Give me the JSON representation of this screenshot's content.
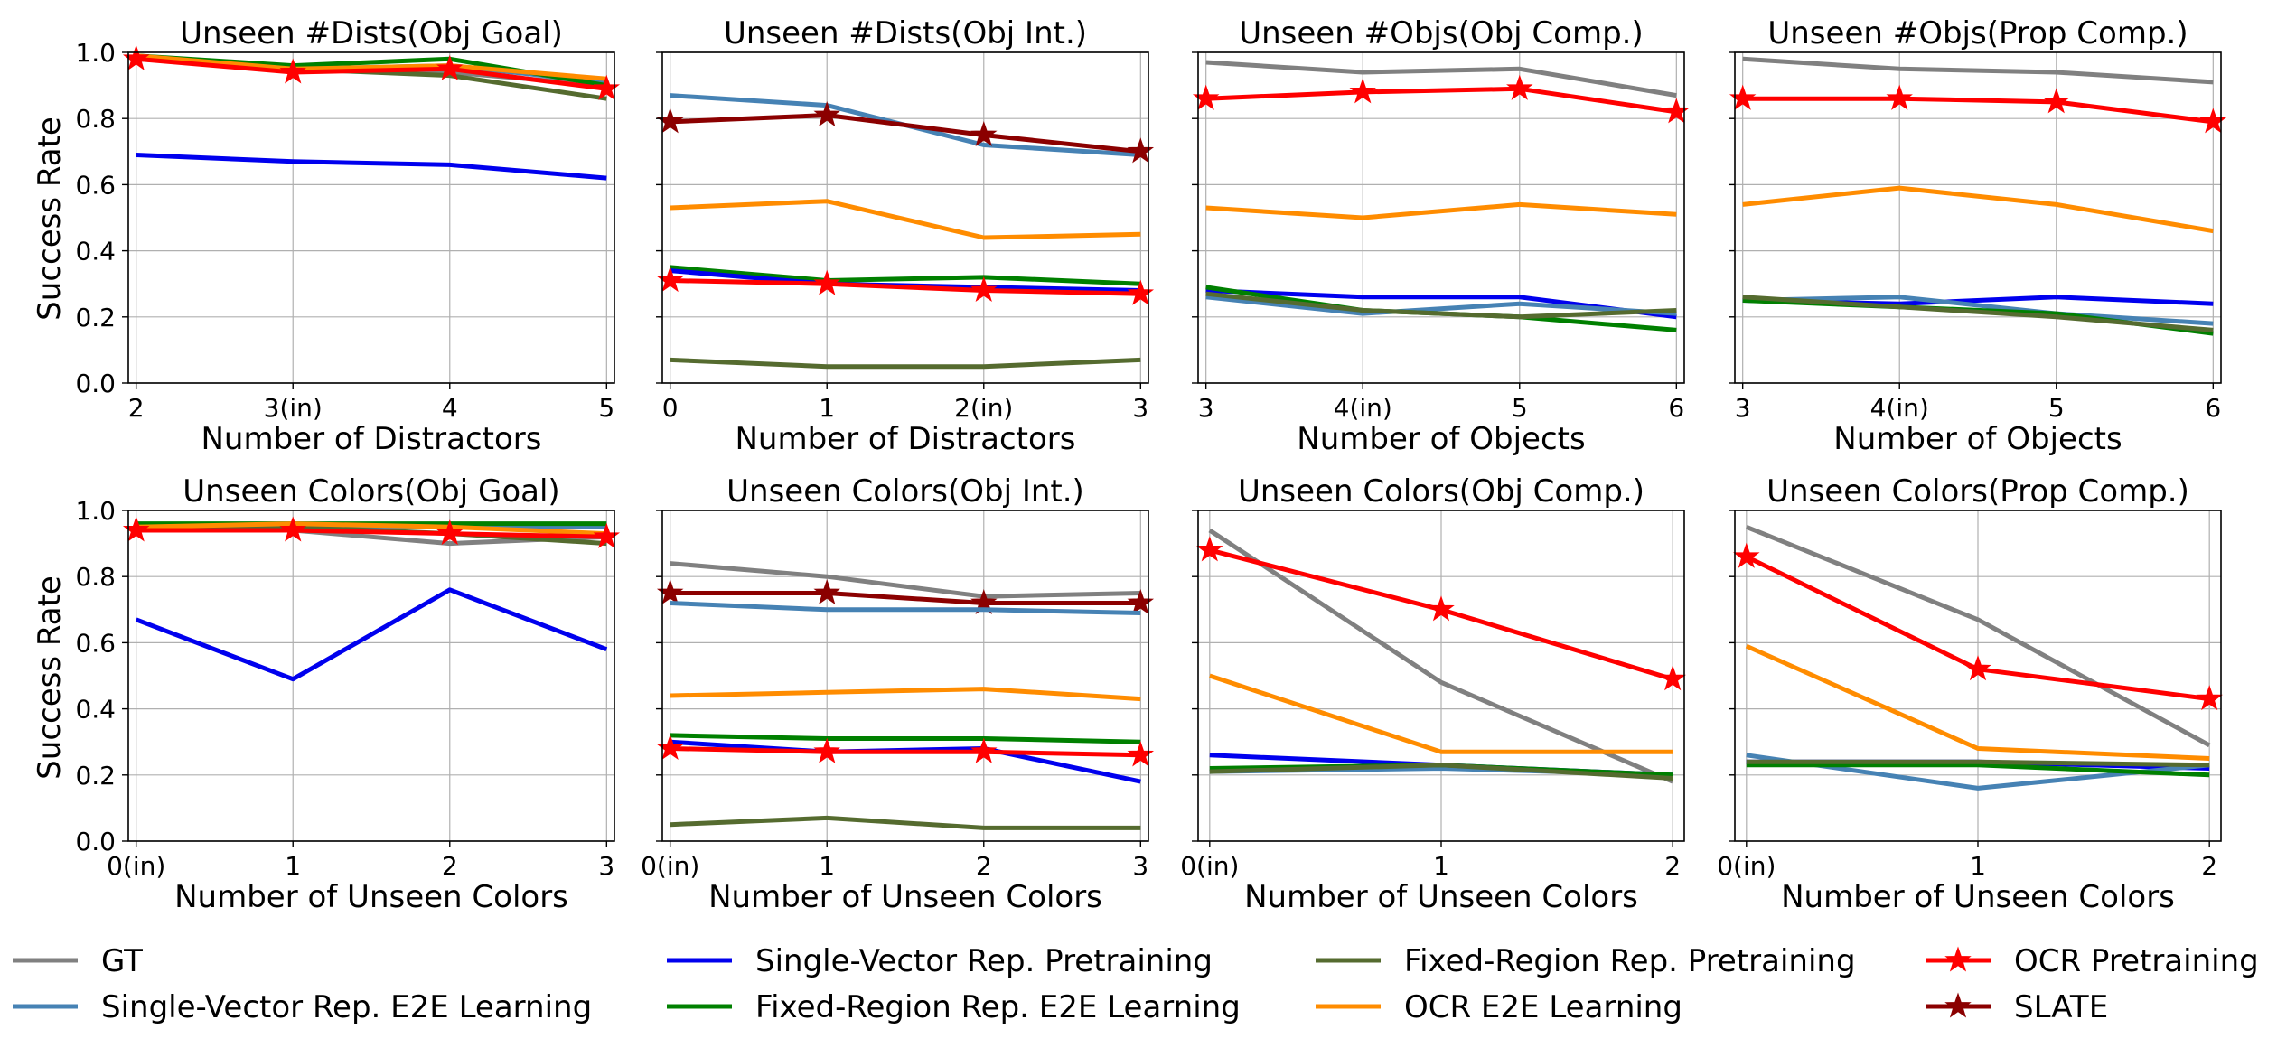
{
  "figure": {
    "ylabel": "Success Rate",
    "y_ticks": [
      "0.0",
      "0.2",
      "0.4",
      "0.6",
      "0.8",
      "1.0"
    ]
  },
  "styles": {
    "GT": {
      "color": "#808080",
      "marker": "none"
    },
    "Single-Vector Rep. E2E Learning": {
      "color": "#4682b4",
      "marker": "none"
    },
    "Single-Vector Rep. Pretraining": {
      "color": "#0000ee",
      "marker": "none"
    },
    "Fixed-Region Rep. E2E Learning": {
      "color": "#008000",
      "marker": "none"
    },
    "Fixed-Region Rep. Pretraining": {
      "color": "#556b2f",
      "marker": "none"
    },
    "OCR E2E Learning": {
      "color": "#ff8c00",
      "marker": "none"
    },
    "OCR Pretraining": {
      "color": "#ff0000",
      "marker": "star"
    },
    "SLATE": {
      "color": "#8b0000",
      "marker": "star"
    }
  },
  "legend": {
    "columns": [
      [
        "GT",
        "Single-Vector Rep. E2E Learning"
      ],
      [
        "Single-Vector Rep. Pretraining",
        "Fixed-Region Rep. E2E Learning"
      ],
      [
        "Fixed-Region Rep. Pretraining",
        "OCR E2E Learning"
      ],
      [
        "OCR Pretraining",
        "SLATE"
      ]
    ]
  },
  "chart_data": [
    {
      "type": "line",
      "title": "Unseen #Dists(Obj Goal)",
      "xlabel": "Number of Distractors",
      "categories": [
        "2",
        "3(in)",
        "4",
        "5"
      ],
      "ylim": [
        0,
        1
      ],
      "series": [
        {
          "name": "GT",
          "values": [
            0.99,
            0.95,
            0.94,
            0.9
          ]
        },
        {
          "name": "Single-Vector Rep. E2E Learning",
          "values": [
            0.98,
            0.95,
            0.96,
            0.91
          ]
        },
        {
          "name": "Single-Vector Rep. Pretraining",
          "values": [
            0.69,
            0.67,
            0.66,
            0.62
          ]
        },
        {
          "name": "Fixed-Region Rep. E2E Learning",
          "values": [
            0.99,
            0.96,
            0.98,
            0.9
          ]
        },
        {
          "name": "Fixed-Region Rep. Pretraining",
          "values": [
            0.98,
            0.95,
            0.93,
            0.86
          ]
        },
        {
          "name": "OCR E2E Learning",
          "values": [
            0.99,
            0.95,
            0.96,
            0.92
          ]
        },
        {
          "name": "OCR Pretraining",
          "values": [
            0.98,
            0.94,
            0.95,
            0.89
          ]
        }
      ]
    },
    {
      "type": "line",
      "title": "Unseen #Dists(Obj Int.)",
      "xlabel": "Number of Distractors",
      "categories": [
        "0",
        "1",
        "2(in)",
        "3"
      ],
      "ylim": [
        0,
        1
      ],
      "series": [
        {
          "name": "Single-Vector Rep. E2E Learning",
          "values": [
            0.87,
            0.84,
            0.72,
            0.69
          ]
        },
        {
          "name": "SLATE",
          "values": [
            0.79,
            0.81,
            0.75,
            0.7
          ]
        },
        {
          "name": "OCR E2E Learning",
          "values": [
            0.53,
            0.55,
            0.44,
            0.45
          ]
        },
        {
          "name": "Fixed-Region Rep. E2E Learning",
          "values": [
            0.35,
            0.31,
            0.32,
            0.3
          ]
        },
        {
          "name": "Single-Vector Rep. Pretraining",
          "values": [
            0.34,
            0.3,
            0.29,
            0.28
          ]
        },
        {
          "name": "OCR Pretraining",
          "values": [
            0.31,
            0.3,
            0.28,
            0.27
          ]
        },
        {
          "name": "Fixed-Region Rep. Pretraining",
          "values": [
            0.07,
            0.05,
            0.05,
            0.07
          ]
        }
      ]
    },
    {
      "type": "line",
      "title": "Unseen #Objs(Obj Comp.)",
      "xlabel": "Number of Objects",
      "categories": [
        "3",
        "4(in)",
        "5",
        "6"
      ],
      "ylim": [
        0,
        1
      ],
      "series": [
        {
          "name": "GT",
          "values": [
            0.97,
            0.94,
            0.95,
            0.87
          ]
        },
        {
          "name": "OCR Pretraining",
          "values": [
            0.86,
            0.88,
            0.89,
            0.82
          ]
        },
        {
          "name": "OCR E2E Learning",
          "values": [
            0.53,
            0.5,
            0.54,
            0.51
          ]
        },
        {
          "name": "Single-Vector Rep. Pretraining",
          "values": [
            0.28,
            0.26,
            0.26,
            0.2
          ]
        },
        {
          "name": "Single-Vector Rep. E2E Learning",
          "values": [
            0.26,
            0.21,
            0.24,
            0.21
          ]
        },
        {
          "name": "Fixed-Region Rep. E2E Learning",
          "values": [
            0.29,
            0.22,
            0.2,
            0.16
          ]
        },
        {
          "name": "Fixed-Region Rep. Pretraining",
          "values": [
            0.27,
            0.22,
            0.2,
            0.22
          ]
        }
      ]
    },
    {
      "type": "line",
      "title": "Unseen #Objs(Prop Comp.)",
      "xlabel": "Number of Objects",
      "categories": [
        "3",
        "4(in)",
        "5",
        "6"
      ],
      "ylim": [
        0,
        1
      ],
      "series": [
        {
          "name": "GT",
          "values": [
            0.98,
            0.95,
            0.94,
            0.91
          ]
        },
        {
          "name": "OCR Pretraining",
          "values": [
            0.86,
            0.86,
            0.85,
            0.79
          ]
        },
        {
          "name": "OCR E2E Learning",
          "values": [
            0.54,
            0.59,
            0.54,
            0.46
          ]
        },
        {
          "name": "Single-Vector Rep. Pretraining",
          "values": [
            0.25,
            0.24,
            0.26,
            0.24
          ]
        },
        {
          "name": "Single-Vector Rep. E2E Learning",
          "values": [
            0.25,
            0.26,
            0.21,
            0.18
          ]
        },
        {
          "name": "Fixed-Region Rep. E2E Learning",
          "values": [
            0.25,
            0.23,
            0.21,
            0.15
          ]
        },
        {
          "name": "Fixed-Region Rep. Pretraining",
          "values": [
            0.26,
            0.23,
            0.2,
            0.16
          ]
        }
      ]
    },
    {
      "type": "line",
      "title": "Unseen Colors(Obj Goal)",
      "xlabel": "Number of Unseen Colors",
      "categories": [
        "0(in)",
        "1",
        "2",
        "3"
      ],
      "ylim": [
        0,
        1
      ],
      "series": [
        {
          "name": "GT",
          "values": [
            0.95,
            0.94,
            0.9,
            0.92
          ]
        },
        {
          "name": "Single-Vector Rep. E2E Learning",
          "values": [
            0.95,
            0.95,
            0.95,
            0.95
          ]
        },
        {
          "name": "Single-Vector Rep. Pretraining",
          "values": [
            0.67,
            0.49,
            0.76,
            0.58
          ]
        },
        {
          "name": "Fixed-Region Rep. E2E Learning",
          "values": [
            0.96,
            0.96,
            0.96,
            0.96
          ]
        },
        {
          "name": "Fixed-Region Rep. Pretraining",
          "values": [
            0.95,
            0.95,
            0.93,
            0.9
          ]
        },
        {
          "name": "OCR E2E Learning",
          "values": [
            0.95,
            0.96,
            0.95,
            0.93
          ]
        },
        {
          "name": "OCR Pretraining",
          "values": [
            0.94,
            0.94,
            0.93,
            0.92
          ]
        }
      ]
    },
    {
      "type": "line",
      "title": "Unseen Colors(Obj Int.)",
      "xlabel": "Number of Unseen Colors",
      "categories": [
        "0(in)",
        "1",
        "2",
        "3"
      ],
      "ylim": [
        0,
        1
      ],
      "series": [
        {
          "name": "GT",
          "values": [
            0.84,
            0.8,
            0.74,
            0.75
          ]
        },
        {
          "name": "SLATE",
          "values": [
            0.75,
            0.75,
            0.72,
            0.72
          ]
        },
        {
          "name": "Single-Vector Rep. E2E Learning",
          "values": [
            0.72,
            0.7,
            0.7,
            0.69
          ]
        },
        {
          "name": "OCR E2E Learning",
          "values": [
            0.44,
            0.45,
            0.46,
            0.43
          ]
        },
        {
          "name": "Fixed-Region Rep. E2E Learning",
          "values": [
            0.32,
            0.31,
            0.31,
            0.3
          ]
        },
        {
          "name": "Single-Vector Rep. Pretraining",
          "values": [
            0.3,
            0.27,
            0.28,
            0.18
          ]
        },
        {
          "name": "OCR Pretraining",
          "values": [
            0.28,
            0.27,
            0.27,
            0.26
          ]
        },
        {
          "name": "Fixed-Region Rep. Pretraining",
          "values": [
            0.05,
            0.07,
            0.04,
            0.04
          ]
        }
      ]
    },
    {
      "type": "line",
      "title": "Unseen Colors(Obj Comp.)",
      "xlabel": "Number of Unseen Colors",
      "categories": [
        "0(in)",
        "1",
        "2"
      ],
      "ylim": [
        0,
        1
      ],
      "series": [
        {
          "name": "GT",
          "values": [
            0.94,
            0.48,
            0.18
          ]
        },
        {
          "name": "OCR Pretraining",
          "values": [
            0.88,
            0.7,
            0.49
          ]
        },
        {
          "name": "OCR E2E Learning",
          "values": [
            0.5,
            0.27,
            0.27
          ]
        },
        {
          "name": "Single-Vector Rep. Pretraining",
          "values": [
            0.26,
            0.23,
            0.2
          ]
        },
        {
          "name": "Single-Vector Rep. E2E Learning",
          "values": [
            0.21,
            0.22,
            0.2
          ]
        },
        {
          "name": "Fixed-Region Rep. E2E Learning",
          "values": [
            0.22,
            0.23,
            0.2
          ]
        },
        {
          "name": "Fixed-Region Rep. Pretraining",
          "values": [
            0.21,
            0.23,
            0.19
          ]
        }
      ]
    },
    {
      "type": "line",
      "title": "Unseen Colors(Prop Comp.)",
      "xlabel": "Number of Unseen Colors",
      "categories": [
        "0(in)",
        "1",
        "2"
      ],
      "ylim": [
        0,
        1
      ],
      "series": [
        {
          "name": "GT",
          "values": [
            0.95,
            0.67,
            0.29
          ]
        },
        {
          "name": "OCR Pretraining",
          "values": [
            0.86,
            0.52,
            0.43
          ]
        },
        {
          "name": "OCR E2E Learning",
          "values": [
            0.59,
            0.28,
            0.25
          ]
        },
        {
          "name": "Single-Vector Rep. Pretraining",
          "values": [
            0.24,
            0.24,
            0.22
          ]
        },
        {
          "name": "Single-Vector Rep. E2E Learning",
          "values": [
            0.26,
            0.16,
            0.23
          ]
        },
        {
          "name": "Fixed-Region Rep. E2E Learning",
          "values": [
            0.23,
            0.23,
            0.2
          ]
        },
        {
          "name": "Fixed-Region Rep. Pretraining",
          "values": [
            0.24,
            0.24,
            0.23
          ]
        }
      ]
    }
  ]
}
